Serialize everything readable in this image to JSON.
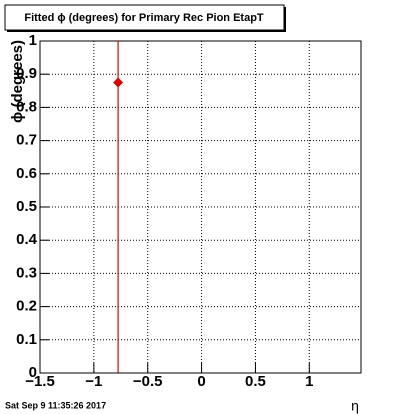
{
  "chart_data": {
    "type": "scatter",
    "title": "Fitted ϕ (degrees) for Primary Rec Pion EtapT",
    "x_label": "η",
    "y_label": "ϕ (degrees)",
    "timestamp": "Sat Sep  9 11:35:26 2017",
    "x": [
      -0.775
    ],
    "values": [
      0.875
    ],
    "errors": [
      1.0
    ],
    "color": "#e00000",
    "xlim": [
      -1.5,
      1.48
    ],
    "ylim": [
      0,
      1
    ],
    "xticks": [
      {
        "value": -1.5,
        "label": "−1.5"
      },
      {
        "value": -1,
        "label": "−1"
      },
      {
        "value": -0.5,
        "label": "−0.5"
      },
      0,
      0.5,
      1
    ],
    "yticks": [
      0,
      0.1,
      0.2,
      0.3,
      0.4,
      0.5,
      0.6,
      0.7,
      0.8,
      0.9,
      1
    ],
    "grid": true
  }
}
